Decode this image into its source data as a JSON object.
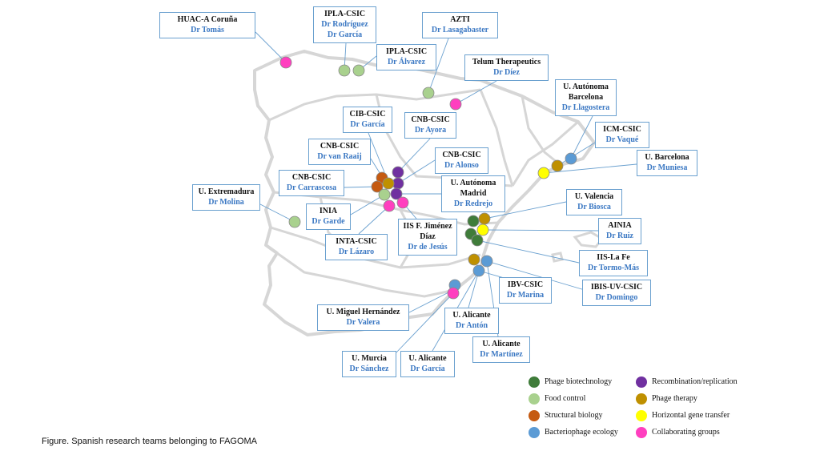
{
  "colors": {
    "phage_biotechnology": "#3f7c3a",
    "food_control": "#a9d18e",
    "structural_biology": "#c55a11",
    "bacteriophage_ecology": "#5b9bd5",
    "recombination_replication": "#7030a0",
    "phage_therapy": "#bf9000",
    "horizontal_gene_transfer": "#ffff00",
    "collaborating_groups": "#ff3fbf"
  },
  "teams": [
    {
      "inst": "HUAC-A Coruña",
      "dr": "Dr Tomás"
    },
    {
      "inst": "IPLA-CSIC",
      "dr": "Dr Rodríguez",
      "dr2": "Dr García"
    },
    {
      "inst": "IPLA-CSIC",
      "dr": "Dr Álvarez"
    },
    {
      "inst": "AZTI",
      "dr": "Dr Lasagabaster"
    },
    {
      "inst": "Telum Therapeutics",
      "dr": "Dr Díez"
    },
    {
      "inst": "U. Autónoma Barcelona",
      "dr": "Dr Llagostera"
    },
    {
      "inst": "ICM-CSIC",
      "dr": "Dr Vaqué"
    },
    {
      "inst": "U. Barcelona",
      "dr": "Dr Muniesa"
    },
    {
      "inst": "CIB-CSIC",
      "dr": "Dr García"
    },
    {
      "inst": "CNB-CSIC",
      "dr": "Dr Ayora"
    },
    {
      "inst": "CNB-CSIC",
      "dr": "Dr van Raaij"
    },
    {
      "inst": "CNB-CSIC",
      "dr": "Dr Alonso"
    },
    {
      "inst": "CNB-CSIC",
      "dr": "Dr Carrascosa"
    },
    {
      "inst": "U. Autónoma Madrid",
      "dr": "Dr Redrejo"
    },
    {
      "inst": "U. Extremadura",
      "dr": "Dr Molina"
    },
    {
      "inst": "INIA",
      "dr": "Dr Garde"
    },
    {
      "inst": "U. Valencia",
      "dr": "Dr Biosca"
    },
    {
      "inst": "AINIA",
      "dr": "Dr Ruiz"
    },
    {
      "inst": "IIS F. Jiménez Díaz",
      "dr": "Dr de Jesús"
    },
    {
      "inst": "INTA-CSIC",
      "dr": "Dr Lázaro"
    },
    {
      "inst": "IIS-La Fe",
      "dr": "Dr Tormo-Más"
    },
    {
      "inst": "IBV-CSIC",
      "dr": "Dr Marina"
    },
    {
      "inst": "IBIS-UV-CSIC",
      "dr": "Dr Domingo"
    },
    {
      "inst": "U. Miguel Hernández",
      "dr": "Dr Valera"
    },
    {
      "inst": "U. Alicante",
      "dr": "Dr Antón"
    },
    {
      "inst": "U. Alicante",
      "dr": "Dr Martínez"
    },
    {
      "inst": "U. Murcia",
      "dr": "Dr Sánchez"
    },
    {
      "inst": "U. Alicante",
      "dr": "Dr García"
    }
  ],
  "legend": [
    {
      "label": "Phage biotechnology",
      "color_key": "phage_biotechnology"
    },
    {
      "label": "Food control",
      "color_key": "food_control"
    },
    {
      "label": "Structural biology",
      "color_key": "structural_biology"
    },
    {
      "label": "Bacteriophage ecology",
      "color_key": "bacteriophage_ecology"
    },
    {
      "label": "Recombination/replication",
      "color_key": "recombination_replication"
    },
    {
      "label": "Phage therapy",
      "color_key": "phage_therapy"
    },
    {
      "label": "Horizontal gene transfer",
      "color_key": "horizontal_gene_transfer"
    },
    {
      "label": "Collaborating groups",
      "color_key": "collaborating_groups"
    }
  ],
  "caption": "Figure. Spanish research teams belonging to FAGOMA"
}
